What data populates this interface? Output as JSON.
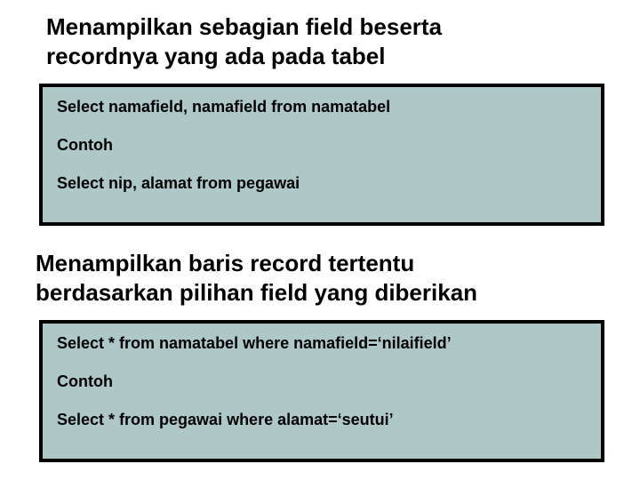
{
  "heading1_line1": "Menampilkan sebagian field beserta",
  "heading1_line2": "recordnya yang ada pada tabel",
  "box1": {
    "line1": "Select namafield, namafield from namatabel",
    "line2": "Contoh",
    "line3": "Select nip, alamat from pegawai"
  },
  "heading2_line1": "Menampilkan baris record tertentu",
  "heading2_line2": "berdasarkan pilihan field yang diberikan",
  "box2": {
    "line1": "Select * from namatabel where namafield=‘nilaifield’",
    "line2": "Contoh",
    "line3": "Select * from pegawai where alamat=‘seutui’"
  },
  "colors": {
    "box_bg": "#aec8c8",
    "box_border": "#000000",
    "text": "#000000",
    "page_bg": "#ffffff"
  },
  "typography": {
    "heading_fontsize": 26,
    "box_fontsize": 18,
    "font_family": "Arial",
    "font_weight": "bold"
  }
}
